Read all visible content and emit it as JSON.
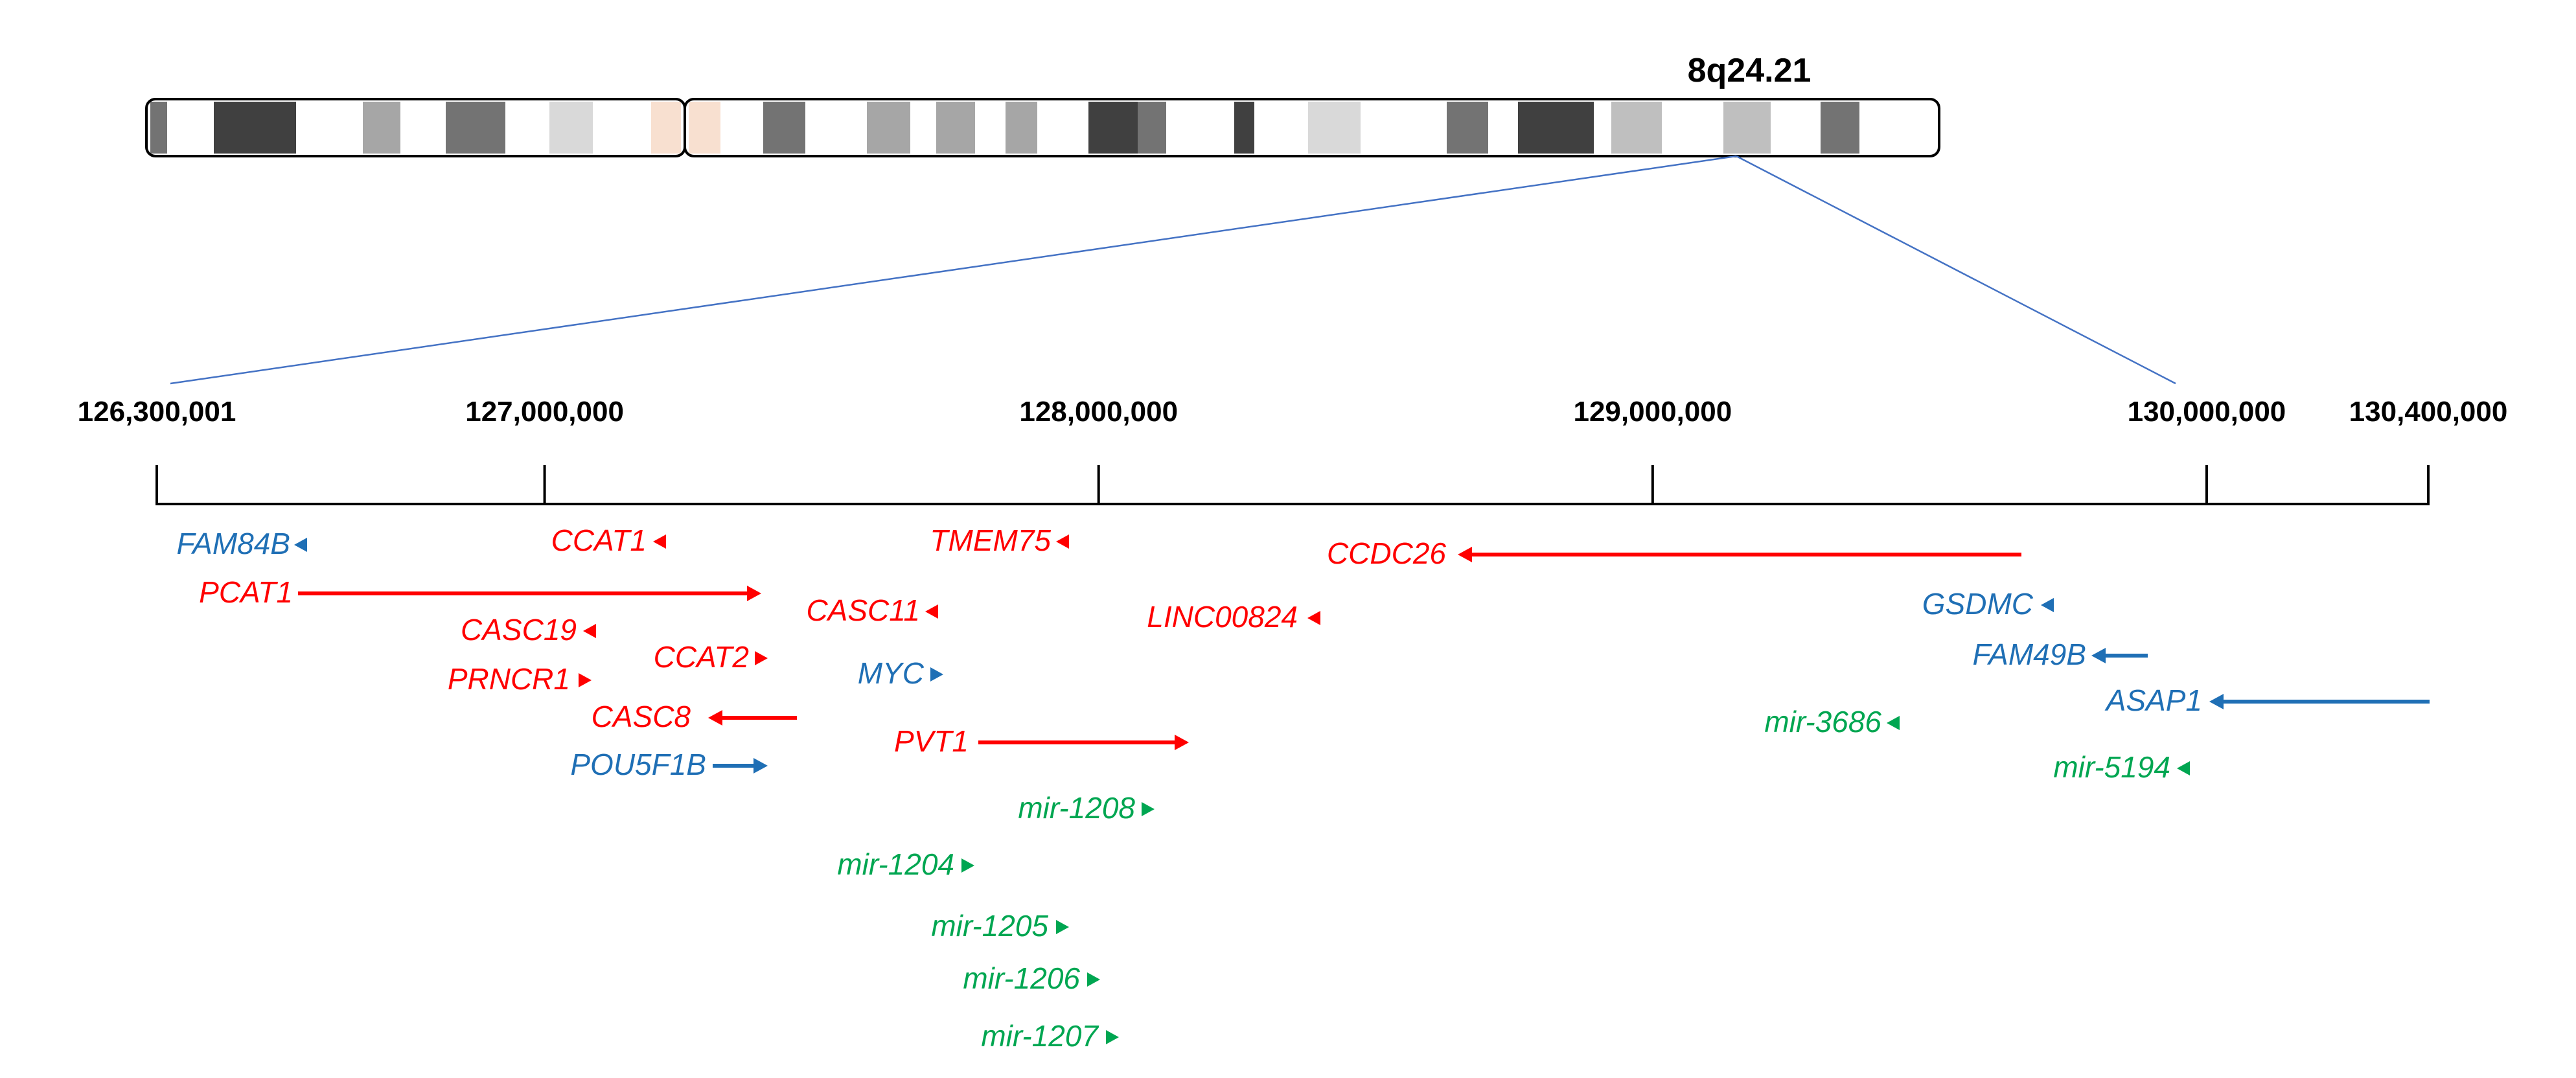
{
  "band_label": "8q24.21",
  "colors": {
    "protein_coding": "#1f6fb5",
    "lncrna": "#ff0000",
    "mirna": "#00a651",
    "zoom_line": "#4472c4",
    "tick": "#000000"
  },
  "axis": {
    "min": 126300001,
    "max": 130400000,
    "ticks": [
      {
        "value": 126300001,
        "label": "126,300,001"
      },
      {
        "value": 127000000,
        "label": "127,000,000"
      },
      {
        "value": 128000000,
        "label": "128,000,000"
      },
      {
        "value": 129000000,
        "label": "129,000,000"
      },
      {
        "value": 130000000,
        "label": "130,000,000"
      },
      {
        "value": 130400000,
        "label": "130,400,000"
      }
    ]
  },
  "ideogram": {
    "bands": [
      {
        "stain": "#737373"
      },
      {
        "stain": "#ffffff"
      },
      {
        "stain": "#404040"
      },
      {
        "stain": "#ffffff"
      },
      {
        "stain": "#a6a6a6"
      },
      {
        "stain": "#ffffff"
      },
      {
        "stain": "#737373"
      },
      {
        "stain": "#ffffff"
      },
      {
        "stain": "#d9d9d9"
      },
      {
        "stain": "#ffffff"
      },
      {
        "stain": "#f8e0d0"
      },
      {
        "stain": "#f8e0d0"
      },
      {
        "stain": "#ffffff"
      },
      {
        "stain": "#737373"
      },
      {
        "stain": "#ffffff"
      },
      {
        "stain": "#a6a6a6"
      },
      {
        "stain": "#ffffff"
      },
      {
        "stain": "#a6a6a6"
      },
      {
        "stain": "#ffffff"
      },
      {
        "stain": "#a6a6a6"
      },
      {
        "stain": "#ffffff"
      },
      {
        "stain": "#404040"
      },
      {
        "stain": "#737373"
      },
      {
        "stain": "#ffffff"
      },
      {
        "stain": "#404040"
      },
      {
        "stain": "#ffffff"
      },
      {
        "stain": "#d9d9d9"
      },
      {
        "stain": "#ffffff"
      },
      {
        "stain": "#737373"
      },
      {
        "stain": "#ffffff"
      },
      {
        "stain": "#404040"
      },
      {
        "stain": "#ffffff"
      },
      {
        "stain": "#bfbfbf"
      },
      {
        "stain": "#ffffff"
      },
      {
        "stain": "#bfbfbf"
      },
      {
        "stain": "#ffffff"
      },
      {
        "stain": "#737373"
      },
      {
        "stain": "#ffffff"
      }
    ]
  },
  "genes": [
    {
      "name": "FAM84B",
      "category": "protein_coding",
      "strand": "-"
    },
    {
      "name": "PCAT1",
      "category": "lncrna",
      "strand": "+"
    },
    {
      "name": "CCAT1",
      "category": "lncrna",
      "strand": "-"
    },
    {
      "name": "CASC19",
      "category": "lncrna",
      "strand": "-"
    },
    {
      "name": "PRNCR1",
      "category": "lncrna",
      "strand": "+"
    },
    {
      "name": "CCAT2",
      "category": "lncrna",
      "strand": "+"
    },
    {
      "name": "CASC8",
      "category": "lncrna",
      "strand": "-"
    },
    {
      "name": "POU5F1B",
      "category": "protein_coding",
      "strand": "+"
    },
    {
      "name": "TMEM75",
      "category": "lncrna",
      "strand": "-"
    },
    {
      "name": "CASC11",
      "category": "lncrna",
      "strand": "-"
    },
    {
      "name": "MYC",
      "category": "protein_coding",
      "strand": "+"
    },
    {
      "name": "PVT1",
      "category": "lncrna",
      "strand": "+"
    },
    {
      "name": "mir-1208",
      "category": "mirna",
      "strand": "+"
    },
    {
      "name": "mir-1204",
      "category": "mirna",
      "strand": "+"
    },
    {
      "name": "mir-1205",
      "category": "mirna",
      "strand": "+"
    },
    {
      "name": "mir-1206",
      "category": "mirna",
      "strand": "+"
    },
    {
      "name": "mir-1207",
      "category": "mirna",
      "strand": "+"
    },
    {
      "name": "CCDC26",
      "category": "lncrna",
      "strand": "-"
    },
    {
      "name": "LINC00824",
      "category": "lncrna",
      "strand": "-"
    },
    {
      "name": "GSDMC",
      "category": "protein_coding",
      "strand": "-"
    },
    {
      "name": "FAM49B",
      "category": "protein_coding",
      "strand": "-"
    },
    {
      "name": "ASAP1",
      "category": "protein_coding",
      "strand": "-"
    },
    {
      "name": "mir-3686",
      "category": "mirna",
      "strand": "-"
    },
    {
      "name": "mir-5194",
      "category": "mirna",
      "strand": "-"
    }
  ]
}
